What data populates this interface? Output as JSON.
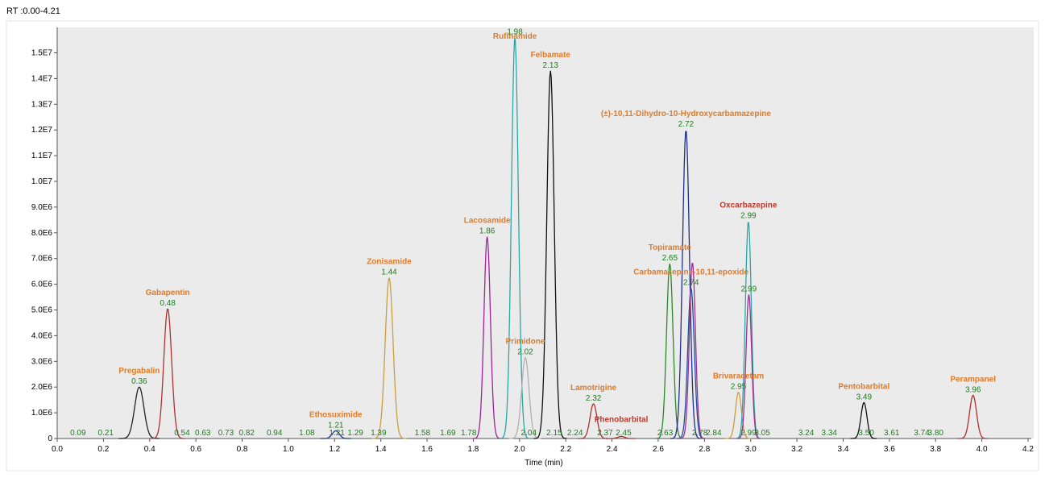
{
  "header": {
    "range_label": "RT :0.00-4.21"
  },
  "colors": {
    "plot_bg": "#ebebeb",
    "axis": "#555555",
    "rt_text": "#1e7d1e",
    "compound_text": "#e07b28",
    "compound_text_alt": "#c0392b"
  },
  "chart_data": {
    "type": "line",
    "title": "",
    "xlabel": "Time (min)",
    "ylabel": "",
    "xlim": [
      0.0,
      4.2
    ],
    "ylim": [
      0,
      15800000
    ],
    "grid": false,
    "legend": "none",
    "x_ticks": [
      "0.0",
      "0.2",
      "0.4",
      "0.6",
      "0.8",
      "1.0",
      "1.2",
      "1.4",
      "1.6",
      "1.8",
      "2.0",
      "2.2",
      "2.4",
      "2.6",
      "2.8",
      "3.0",
      "3.2",
      "3.4",
      "3.6",
      "3.8",
      "4.0",
      "4.2"
    ],
    "y_ticks": [
      {
        "value": 0,
        "label": "0"
      },
      {
        "value": 1000000,
        "label": "1.0E6"
      },
      {
        "value": 2000000,
        "label": "2.0E6"
      },
      {
        "value": 3000000,
        "label": "3.0E6"
      },
      {
        "value": 4000000,
        "label": "4.0E6"
      },
      {
        "value": 5000000,
        "label": "5.0E6"
      },
      {
        "value": 6000000,
        "label": "6.0E6"
      },
      {
        "value": 7000000,
        "label": "7.0E6"
      },
      {
        "value": 8000000,
        "label": "8.0E6"
      },
      {
        "value": 9000000,
        "label": "9.0E6"
      },
      {
        "value": 10000000,
        "label": "1.0E7"
      },
      {
        "value": 11000000,
        "label": "1.1E7"
      },
      {
        "value": 12000000,
        "label": "1.2E7"
      },
      {
        "value": 13000000,
        "label": "1.3E7"
      },
      {
        "value": 14000000,
        "label": "1.4E7"
      },
      {
        "value": 15000000,
        "label": "1.5E7"
      }
    ],
    "series": [
      {
        "name": "Pregabalin",
        "rt_label": "0.36",
        "rt": 0.355,
        "height": 2000000,
        "width": 0.02,
        "color": "#222222",
        "name_color": "#e07b28"
      },
      {
        "name": "Gabapentin",
        "rt_label": "0.48",
        "rt": 0.478,
        "height": 5050000,
        "width": 0.017,
        "color": "#b03030",
        "name_color": "#e07b28"
      },
      {
        "name": "Ethosuximide",
        "rt_label": "1.21",
        "rt": 1.205,
        "height": 300000,
        "width": 0.015,
        "color": "#1f3b8a",
        "name_color": "#e07b28"
      },
      {
        "name": "Zonisamide",
        "rt_label": "1.44",
        "rt": 1.436,
        "height": 6250000,
        "width": 0.017,
        "color": "#c9a040",
        "name_color": "#e07b28"
      },
      {
        "name": "Lacosamide",
        "rt_label": "1.86",
        "rt": 1.86,
        "height": 7850000,
        "width": 0.014,
        "color": "#a020a0",
        "name_color": "#e07b28"
      },
      {
        "name": "Rufinamide",
        "rt_label": "1.98",
        "rt": 1.98,
        "height": 15600000,
        "width": 0.015,
        "color": "#2aa7a7",
        "name_color": "#e07b28"
      },
      {
        "name": "Primidone",
        "rt_label": "2.02",
        "rt": 2.025,
        "height": 3150000,
        "width": 0.016,
        "color": "#b0b0b0",
        "name_color": "#e07b28"
      },
      {
        "name": "Felbamate",
        "rt_label": "2.13",
        "rt": 2.134,
        "height": 14300000,
        "width": 0.016,
        "color": "#111111",
        "name_color": "#e07b28"
      },
      {
        "name": "Lamotrigine",
        "rt_label": "2.32",
        "rt": 2.32,
        "height": 1350000,
        "width": 0.015,
        "color": "#b03030",
        "name_color": "#e07b28"
      },
      {
        "name": "Phenobarbital",
        "rt_label": "",
        "rt": 2.44,
        "height": 80000,
        "width": 0.015,
        "color": "#b03030",
        "name_color": "#c0392b"
      },
      {
        "name": "Topiramate",
        "rt_label": "2.65",
        "rt": 2.65,
        "height": 6800000,
        "width": 0.014,
        "color": "#2a8a2a",
        "name_color": "#e07b28"
      },
      {
        "name": "(±)-10,11-Dihydro-10-Hydroxycarbamazepine",
        "rt_label": "2.72",
        "rt": 2.72,
        "height": 12000000,
        "width": 0.015,
        "color": "#1f2f8a",
        "name_color": "#e07b28"
      },
      {
        "name": "Carbamazepine-10,11-epoxide",
        "rt_label": "2.74",
        "rt": 2.742,
        "height": 5850000,
        "width": 0.014,
        "color": "#1f4fa0",
        "name_color": "#e07b28"
      },
      {
        "name": "",
        "rt_label": "",
        "rt": 2.748,
        "height": 6850000,
        "width": 0.013,
        "color": "#a03090",
        "name_color": "#e07b28"
      },
      {
        "name": "Brivaracetam",
        "rt_label": "2.95",
        "rt": 2.947,
        "height": 1800000,
        "width": 0.013,
        "color": "#c9a040",
        "name_color": "#e07b28"
      },
      {
        "name": "Oxcarbazepine",
        "rt_label": "2.99",
        "rt": 2.99,
        "height": 8450000,
        "width": 0.013,
        "color": "#2aa7a7",
        "name_color": "#c0392b"
      },
      {
        "name": "",
        "rt_label": "2.99",
        "rt": 2.992,
        "height": 5600000,
        "width": 0.012,
        "color": "#a03090",
        "name_color": "#e07b28"
      },
      {
        "name": "Pentobarbital",
        "rt_label": "3.49",
        "rt": 3.49,
        "height": 1400000,
        "width": 0.013,
        "color": "#111111",
        "name_color": "#e07b28"
      },
      {
        "name": "Perampanel",
        "rt_label": "3.96",
        "rt": 3.962,
        "height": 1680000,
        "width": 0.015,
        "color": "#b03030",
        "name_color": "#e07b28"
      }
    ],
    "baseline_rt_labels": [
      {
        "x": 0.09,
        "label": "0.09"
      },
      {
        "x": 0.21,
        "label": "0.21"
      },
      {
        "x": 0.54,
        "label": "0.54"
      },
      {
        "x": 0.63,
        "label": "0.63"
      },
      {
        "x": 0.73,
        "label": "0.73"
      },
      {
        "x": 0.82,
        "label": "0.82"
      },
      {
        "x": 0.94,
        "label": "0.94"
      },
      {
        "x": 1.08,
        "label": "1.08"
      },
      {
        "x": 1.21,
        "label": "1.21"
      },
      {
        "x": 1.29,
        "label": "1.29"
      },
      {
        "x": 1.39,
        "label": "1.39"
      },
      {
        "x": 1.58,
        "label": "1.58"
      },
      {
        "x": 1.69,
        "label": "1.69"
      },
      {
        "x": 1.78,
        "label": "1.78"
      },
      {
        "x": 2.04,
        "label": "2.04"
      },
      {
        "x": 2.15,
        "label": "2.15"
      },
      {
        "x": 2.24,
        "label": "2.24"
      },
      {
        "x": 2.37,
        "label": "2.37"
      },
      {
        "x": 2.45,
        "label": "2.45"
      },
      {
        "x": 2.63,
        "label": "2.63"
      },
      {
        "x": 2.78,
        "label": "2.78"
      },
      {
        "x": 2.84,
        "label": "2.84"
      },
      {
        "x": 2.99,
        "label": "2.99"
      },
      {
        "x": 3.05,
        "label": "3.05"
      },
      {
        "x": 3.24,
        "label": "3.24"
      },
      {
        "x": 3.34,
        "label": "3.34"
      },
      {
        "x": 3.5,
        "label": "3.50"
      },
      {
        "x": 3.61,
        "label": "3.61"
      },
      {
        "x": 3.74,
        "label": "3.74"
      },
      {
        "x": 3.8,
        "label": "3.80"
      }
    ]
  }
}
